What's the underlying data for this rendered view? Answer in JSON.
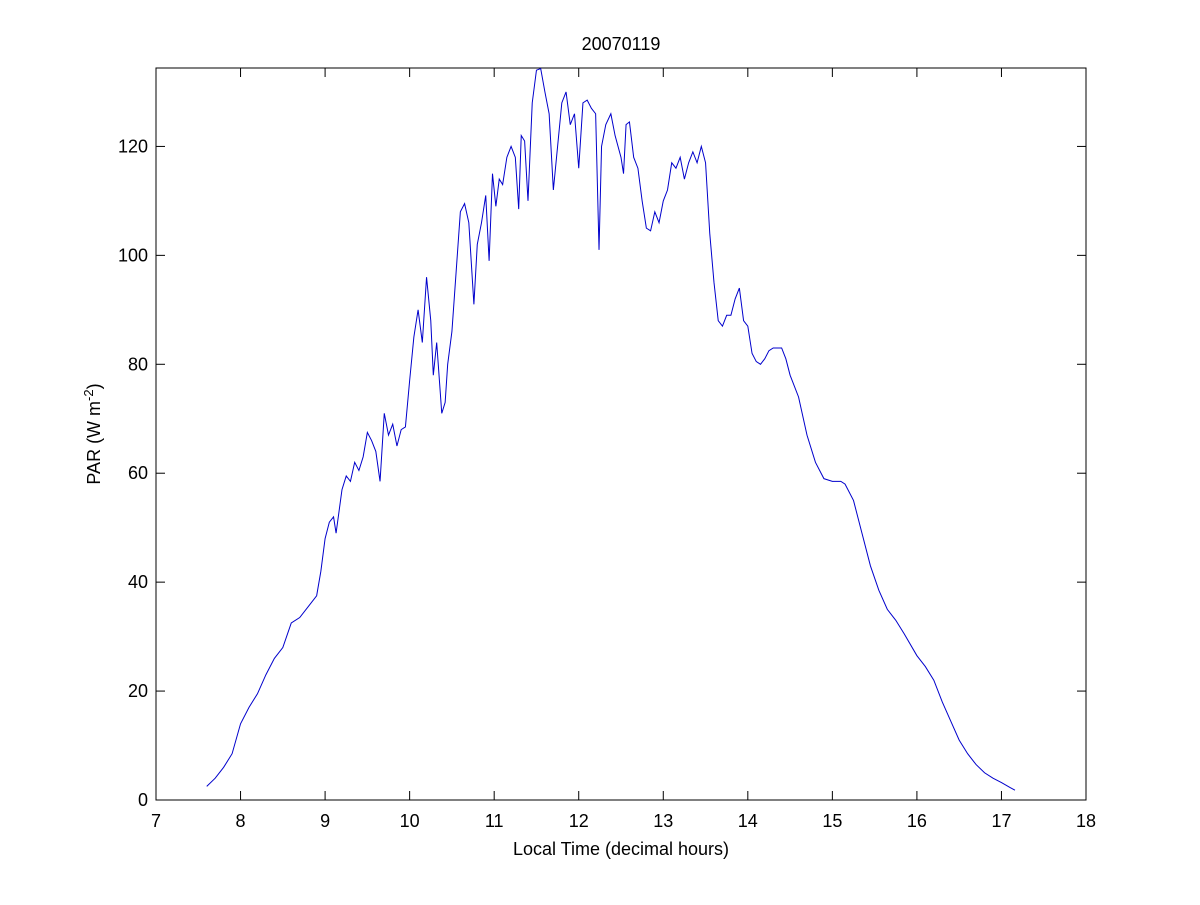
{
  "chart_data": {
    "type": "line",
    "title": "20070119",
    "xlabel": "Local Time (decimal hours)",
    "ylabel": [
      "PAR (W m",
      "-2",
      ")"
    ],
    "xlim": [
      7,
      18
    ],
    "xticks": [
      7,
      8,
      9,
      10,
      11,
      12,
      13,
      14,
      15,
      16,
      17,
      18
    ],
    "ylim": [
      0,
      134.4
    ],
    "yticks": [
      0,
      20,
      40,
      60,
      80,
      100,
      120
    ],
    "box": true,
    "x": [
      7.6,
      7.7,
      7.8,
      7.9,
      8.0,
      8.1,
      8.2,
      8.3,
      8.4,
      8.5,
      8.6,
      8.7,
      8.8,
      8.9,
      8.95,
      9.0,
      9.05,
      9.1,
      9.13,
      9.2,
      9.25,
      9.3,
      9.35,
      9.4,
      9.45,
      9.5,
      9.55,
      9.6,
      9.65,
      9.7,
      9.75,
      9.8,
      9.85,
      9.9,
      9.95,
      10.0,
      10.05,
      10.1,
      10.15,
      10.2,
      10.25,
      10.28,
      10.32,
      10.38,
      10.42,
      10.45,
      10.5,
      10.55,
      10.6,
      10.65,
      10.7,
      10.76,
      10.8,
      10.85,
      10.9,
      10.94,
      10.98,
      11.02,
      11.06,
      11.1,
      11.15,
      11.2,
      11.25,
      11.29,
      11.32,
      11.36,
      11.4,
      11.45,
      11.5,
      11.55,
      11.6,
      11.65,
      11.7,
      11.75,
      11.8,
      11.85,
      11.9,
      11.95,
      12.0,
      12.05,
      12.1,
      12.15,
      12.2,
      12.24,
      12.27,
      12.32,
      12.38,
      12.43,
      12.5,
      12.53,
      12.56,
      12.6,
      12.65,
      12.7,
      12.75,
      12.8,
      12.85,
      12.9,
      12.95,
      13.0,
      13.05,
      13.1,
      13.15,
      13.2,
      13.25,
      13.3,
      13.35,
      13.4,
      13.45,
      13.5,
      13.55,
      13.6,
      13.65,
      13.7,
      13.75,
      13.8,
      13.85,
      13.9,
      13.95,
      14.0,
      14.05,
      14.1,
      14.15,
      14.2,
      14.25,
      14.3,
      14.4,
      14.45,
      14.5,
      14.6,
      14.7,
      14.8,
      14.9,
      15.0,
      15.1,
      15.15,
      15.25,
      15.35,
      15.45,
      15.55,
      15.65,
      15.75,
      15.85,
      16.0,
      16.1,
      16.2,
      16.3,
      16.4,
      16.5,
      16.6,
      16.7,
      16.8,
      16.9,
      17.0,
      17.1,
      17.16
    ],
    "series": [
      {
        "color": "#0000cc",
        "values": [
          2.5,
          4,
          6,
          8.5,
          14,
          17,
          19.5,
          23,
          26,
          28,
          32.5,
          33.5,
          35.5,
          37.5,
          42,
          48,
          51,
          52,
          49,
          57,
          59.5,
          58.5,
          62,
          60.5,
          63,
          67.5,
          66,
          64,
          58.5,
          71,
          67,
          69,
          65,
          68,
          68.5,
          77,
          85,
          90,
          84,
          96,
          88,
          78,
          84,
          71,
          73,
          80,
          86,
          97,
          108,
          109.5,
          106,
          91,
          102,
          106,
          111,
          99,
          115,
          109,
          114,
          113,
          118,
          120,
          118,
          108.5,
          122,
          121,
          110,
          128,
          134,
          134.3,
          130,
          126,
          112,
          120,
          128,
          130,
          124,
          126,
          116,
          128,
          128.5,
          127,
          126,
          101,
          120,
          124,
          126,
          122,
          118,
          115,
          124,
          124.5,
          118,
          116,
          110,
          105,
          104.5,
          108,
          106,
          110,
          112,
          117,
          116,
          118,
          114,
          117,
          119,
          117,
          120,
          117,
          104,
          95,
          88,
          87,
          89,
          89,
          92,
          94,
          88,
          87,
          82,
          80.5,
          80,
          81,
          82.5,
          83,
          83,
          81,
          78,
          74,
          67,
          62,
          59,
          58.5,
          58.5,
          58,
          55,
          49,
          43,
          38.5,
          35,
          33,
          30.5,
          26.5,
          24.5,
          22,
          18,
          14.5,
          11,
          8.5,
          6.5,
          5,
          4,
          3.2,
          2.3,
          1.8
        ]
      }
    ]
  }
}
